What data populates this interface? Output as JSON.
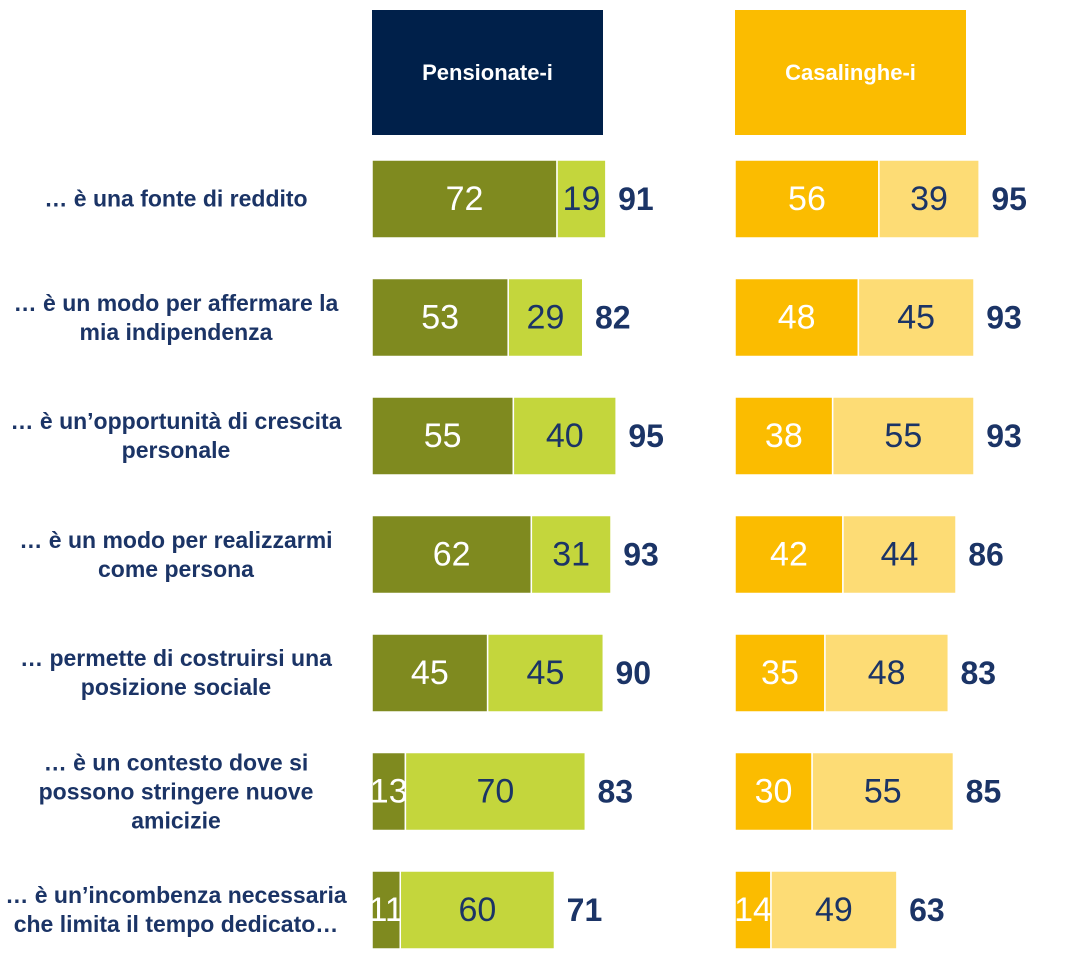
{
  "chart_data": [
    {
      "type": "stacked-bar",
      "title": "Pensionate-i",
      "header_color": "#00204a",
      "categories": [
        "… è una fonte di reddito",
        "… è un modo per affermare la mia indipendenza",
        "… è un’opportunità di crescita personale",
        "… è un modo per realizzarmi come persona",
        "… permette di costruirsi una posizione sociale",
        "… è un contesto dove si possono stringere nuove amicizie",
        "… è un’incombenza necessaria che limita il tempo dedicato…"
      ],
      "series": [
        {
          "color": "#7f8a1f",
          "values": [
            72,
            53,
            55,
            62,
            45,
            13,
            11
          ]
        },
        {
          "color": "#c4d63c",
          "values": [
            19,
            29,
            40,
            31,
            45,
            70,
            60
          ]
        }
      ],
      "totals": [
        91,
        82,
        95,
        93,
        90,
        83,
        71
      ]
    },
    {
      "type": "stacked-bar",
      "title": "Casalinghe-i",
      "header_color": "#fbbc00",
      "series": [
        {
          "color": "#fbbc00",
          "values": [
            56,
            48,
            38,
            42,
            35,
            30,
            14
          ]
        },
        {
          "color": "#fddc75",
          "values": [
            39,
            45,
            55,
            44,
            48,
            55,
            49
          ]
        }
      ],
      "totals": [
        95,
        93,
        93,
        86,
        83,
        85,
        63
      ]
    }
  ]
}
